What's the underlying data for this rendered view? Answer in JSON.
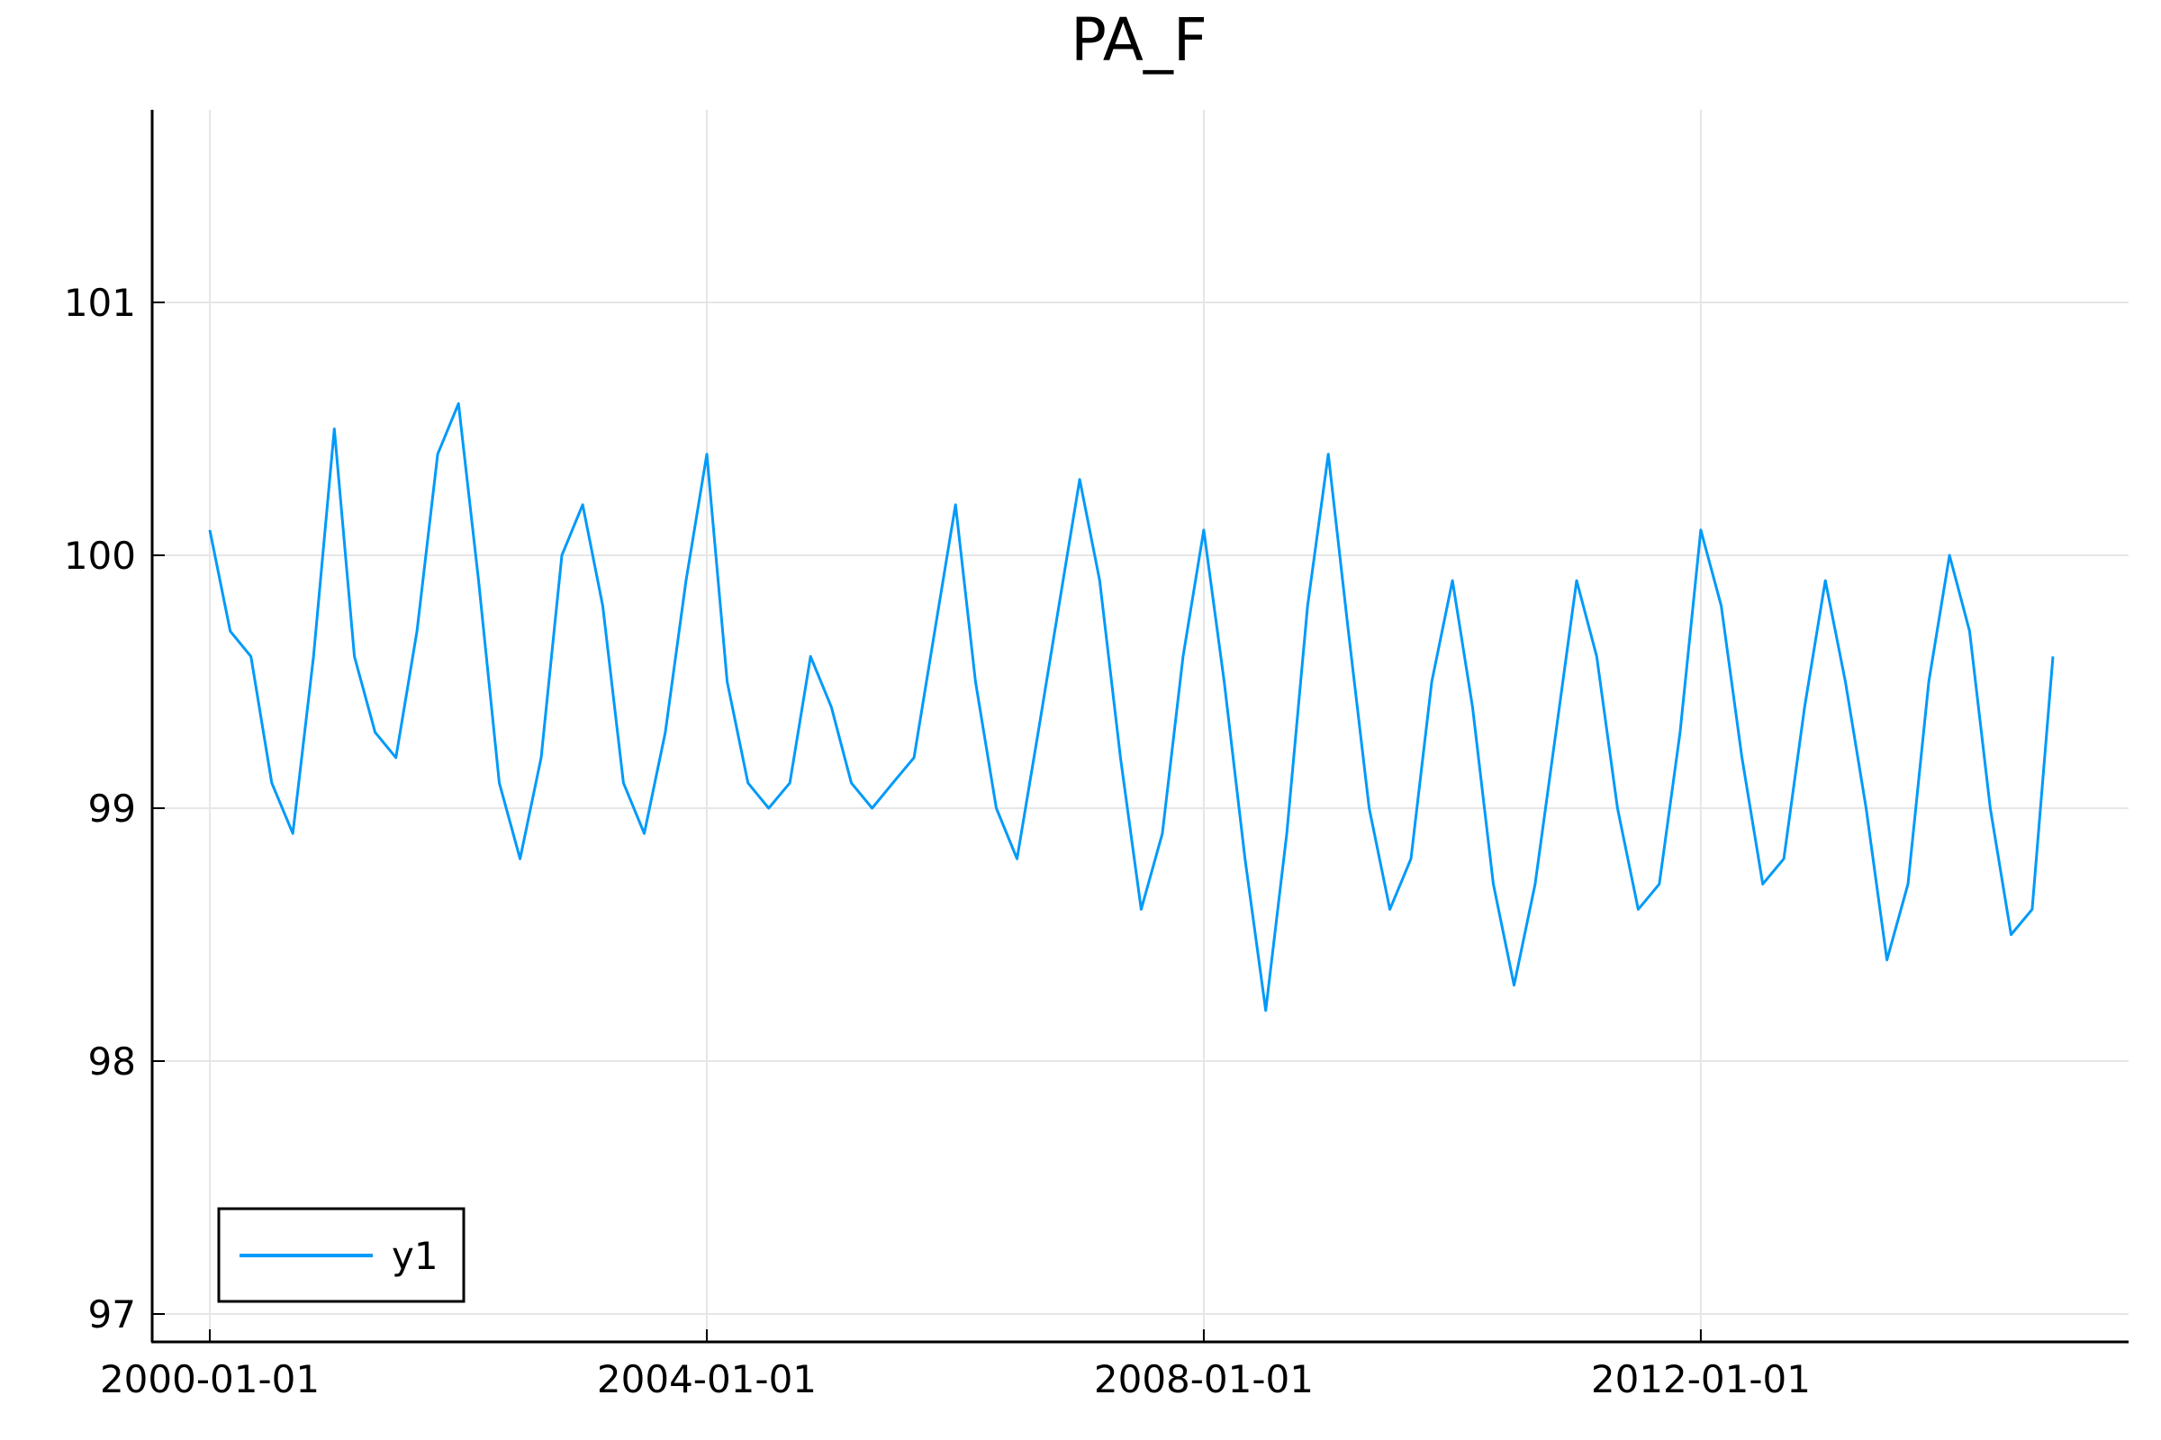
{
  "chart_data": {
    "type": "line",
    "title": "PA_F",
    "xlabel": "",
    "ylabel": "",
    "x_range": [
      "2000-01-01",
      "2015-01-01"
    ],
    "ylim": [
      97,
      101
    ],
    "x_ticks": [
      "2000-01-01",
      "2004-01-01",
      "2008-01-01",
      "2012-01-01"
    ],
    "y_ticks": [
      97,
      98,
      99,
      100,
      101
    ],
    "grid": true,
    "legend": "bottom-left",
    "series": [
      {
        "name": "y1",
        "color": "#009af9",
        "x": [
          "2000-01-01",
          "2000-03-01",
          "2000-05-01",
          "2000-07-01",
          "2000-09-01",
          "2000-11-01",
          "2001-01-01",
          "2001-03-01",
          "2001-05-01",
          "2001-07-01",
          "2001-09-01",
          "2001-11-01",
          "2002-01-01",
          "2002-03-01",
          "2002-05-01",
          "2002-07-01",
          "2002-09-01",
          "2002-11-01",
          "2003-01-01",
          "2003-03-01",
          "2003-05-01",
          "2003-07-01",
          "2003-09-01",
          "2003-11-01",
          "2004-01-01",
          "2004-03-01",
          "2004-05-01",
          "2004-07-01",
          "2004-09-01",
          "2004-11-01",
          "2005-01-01",
          "2005-03-01",
          "2005-05-01",
          "2005-07-01",
          "2005-09-01",
          "2005-11-01",
          "2006-01-01",
          "2006-03-01",
          "2006-05-01",
          "2006-07-01",
          "2006-09-01",
          "2006-11-01",
          "2007-01-01",
          "2007-03-01",
          "2007-05-01",
          "2007-07-01",
          "2007-09-01",
          "2007-11-01",
          "2008-01-01",
          "2008-03-01",
          "2008-05-01",
          "2008-07-01",
          "2008-09-01",
          "2008-11-01",
          "2009-01-01",
          "2009-03-01",
          "2009-05-01",
          "2009-07-01",
          "2009-09-01",
          "2009-11-01",
          "2010-01-01",
          "2010-03-01",
          "2010-05-01",
          "2010-07-01",
          "2010-09-01",
          "2010-11-01",
          "2011-01-01",
          "2011-03-01",
          "2011-05-01",
          "2011-07-01",
          "2011-09-01",
          "2011-11-01",
          "2012-01-01",
          "2012-03-01",
          "2012-05-01",
          "2012-07-01",
          "2012-09-01",
          "2012-11-01",
          "2013-01-01",
          "2013-03-01",
          "2013-05-01",
          "2013-07-01",
          "2013-09-01",
          "2013-11-01",
          "2014-01-01",
          "2014-03-01",
          "2014-05-01",
          "2014-07-01",
          "2014-09-01",
          "2014-11-01"
        ],
        "y": [
          100.1,
          99.7,
          99.6,
          99.1,
          98.9,
          99.6,
          100.5,
          99.6,
          99.3,
          99.2,
          99.7,
          100.4,
          100.6,
          99.9,
          99.1,
          98.8,
          99.2,
          100.0,
          100.2,
          99.8,
          99.1,
          98.9,
          99.3,
          99.9,
          100.4,
          99.5,
          99.1,
          99.0,
          99.1,
          99.6,
          99.4,
          99.1,
          99.0,
          99.1,
          99.2,
          99.7,
          100.2,
          99.5,
          99.0,
          98.8,
          99.3,
          99.8,
          100.3,
          99.9,
          99.2,
          98.6,
          98.9,
          99.6,
          100.1,
          99.5,
          98.8,
          98.2,
          98.9,
          99.8,
          100.4,
          99.7,
          99.0,
          98.6,
          98.8,
          99.5,
          99.9,
          99.4,
          98.7,
          98.3,
          98.7,
          99.3,
          99.9,
          99.6,
          99.0,
          98.6,
          98.7,
          99.3,
          100.1,
          99.8,
          99.2,
          98.7,
          98.8,
          99.4,
          99.9,
          99.5,
          99.0,
          98.4,
          98.7,
          99.5,
          100.0,
          99.7,
          99.0,
          98.5,
          98.6,
          99.6
        ]
      }
    ]
  }
}
